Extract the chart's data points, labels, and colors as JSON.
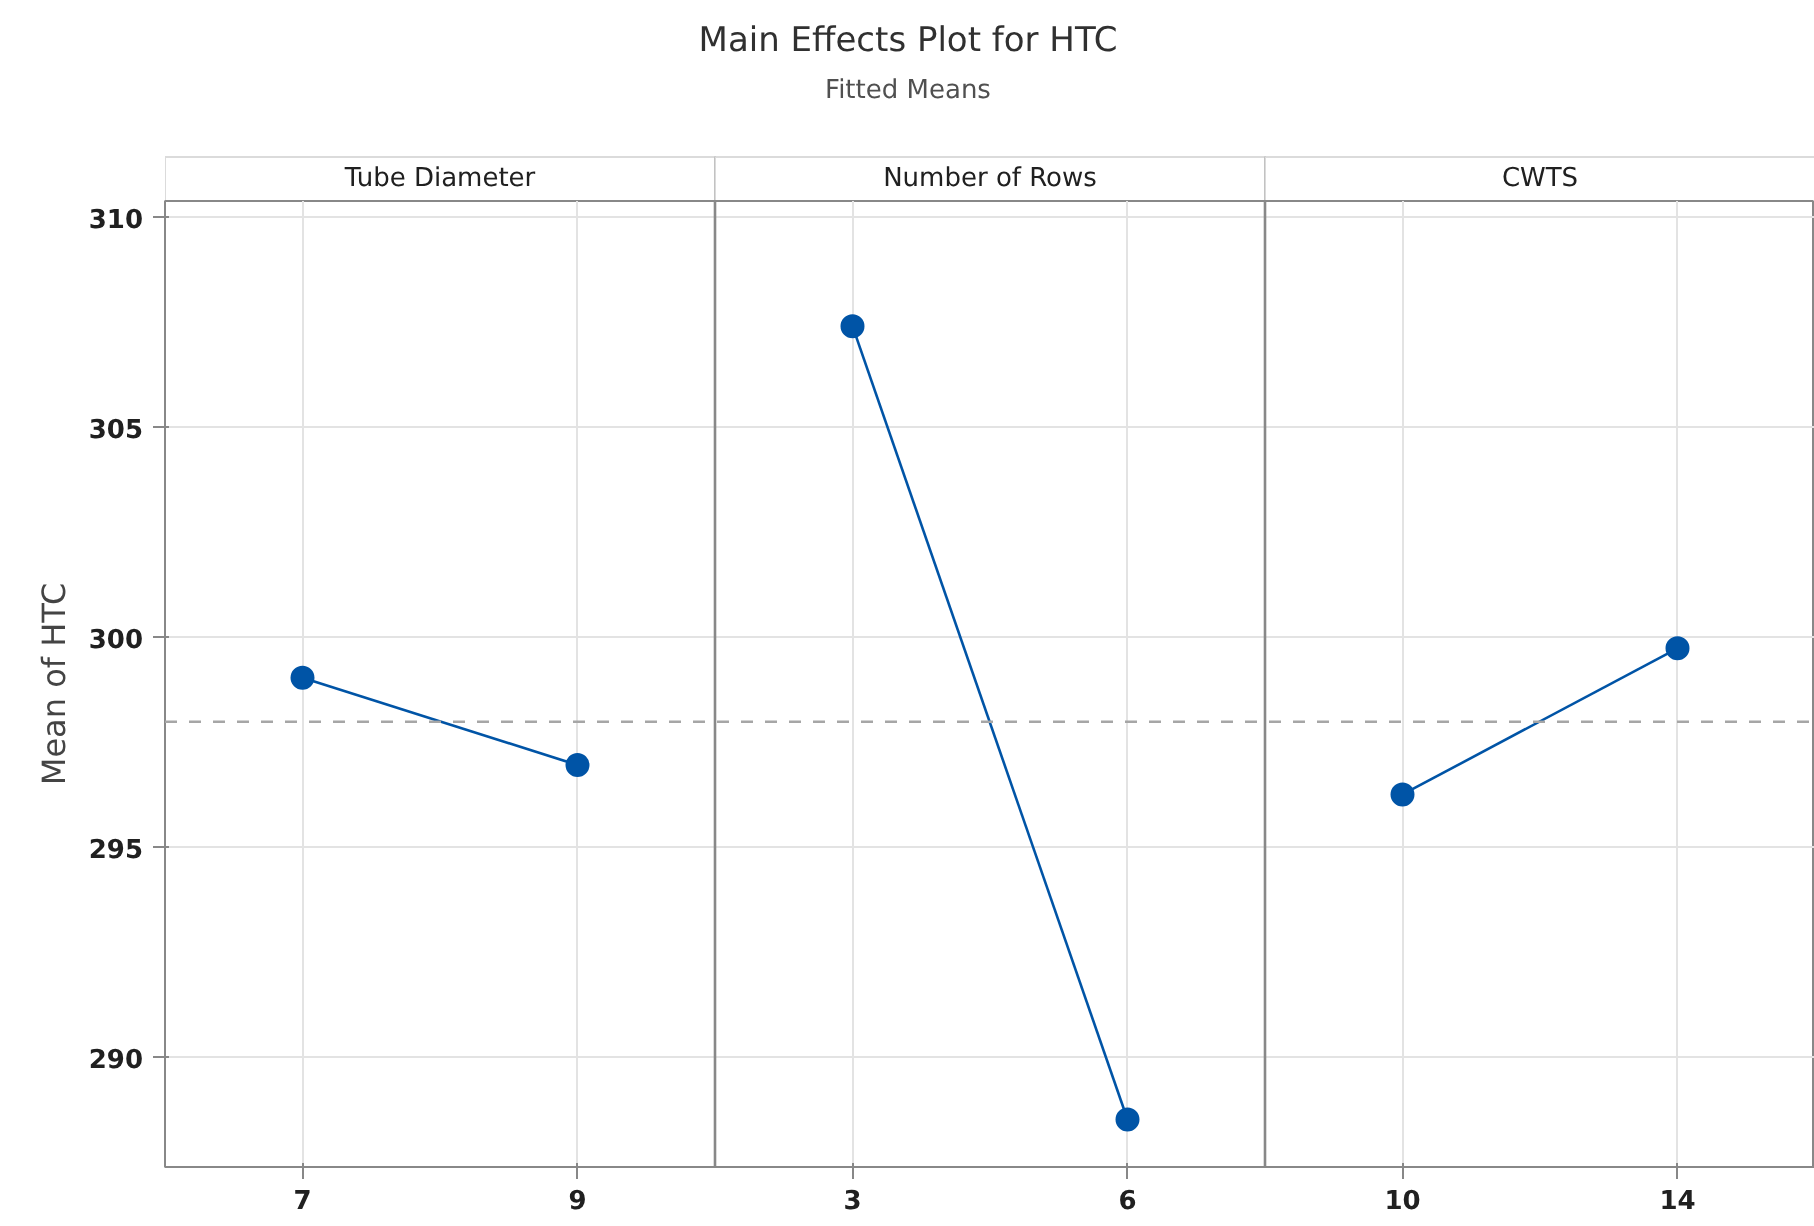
{
  "chart_data": {
    "type": "line",
    "title": "Main Effects Plot for HTC",
    "subtitle": "Fitted Means",
    "annotations": [
      "Tube Diameter",
      "Number of Rows",
      "CWTS"
    ],
    "ylabel": "Mean of HTC",
    "categories": [
      "7",
      "9",
      "3",
      "6",
      "10",
      "14"
    ],
    "series": [
      {
        "color": "#0054a6",
        "values": [
          299.05,
          296.97,
          null,
          null,
          null,
          null
        ]
      },
      {
        "color": "#0054a6",
        "values": [
          null,
          null,
          307.42,
          288.53,
          null,
          null
        ]
      },
      {
        "color": "#0054a6",
        "values": [
          null,
          null,
          null,
          null,
          296.27,
          299.75
        ]
      }
    ],
    "ylim": [
      287.4,
      310.4
    ],
    "yticks": [
      290,
      295,
      300,
      305,
      310
    ],
    "grid": true,
    "marker": "circle",
    "line_style": "solid",
    "ref_lines": [
      {
        "axis": "y",
        "value": 298,
        "color": "#a6a6a6",
        "line_style": "dashed"
      }
    ]
  }
}
